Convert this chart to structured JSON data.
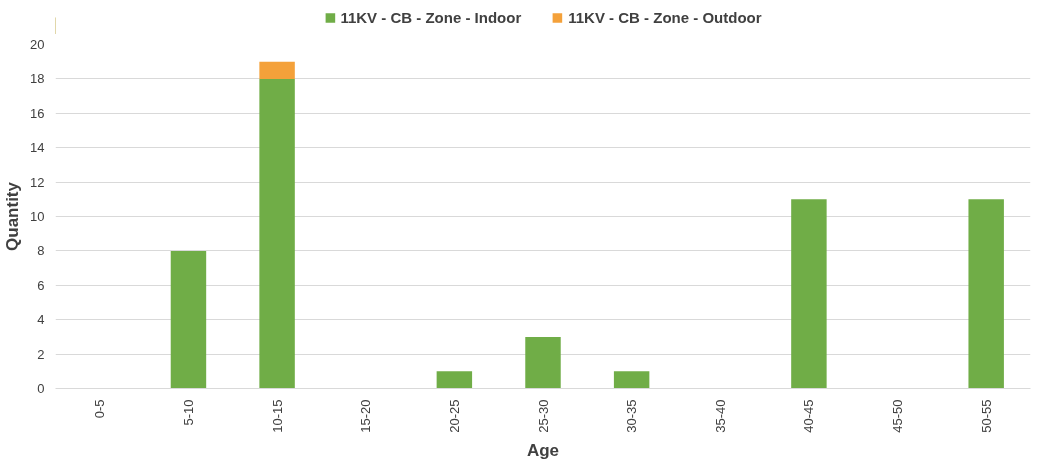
{
  "chart_data": {
    "type": "bar",
    "stacked": true,
    "xlabel": "Age",
    "ylabel": "Quantity",
    "categories": [
      "0-5",
      "5-10",
      "10-15",
      "15-20",
      "20-25",
      "25-30",
      "30-35",
      "35-40",
      "40-45",
      "45-50",
      "50-55"
    ],
    "series": [
      {
        "name": "11KV - CB - Zone - Indoor",
        "color": "#70ad47",
        "values": [
          0,
          8,
          18,
          0,
          1,
          3,
          1,
          0,
          11,
          0,
          11
        ]
      },
      {
        "name": "11KV - CB - Zone - Outdoor",
        "color": "#f4a13a",
        "values": [
          0,
          0,
          1,
          0,
          0,
          0,
          0,
          0,
          0,
          0,
          0
        ]
      }
    ],
    "ylim": [
      0,
      20
    ],
    "yticks": [
      0,
      2,
      4,
      6,
      8,
      10,
      12,
      14,
      16,
      18,
      20
    ],
    "grid": "y",
    "legend": "top"
  }
}
